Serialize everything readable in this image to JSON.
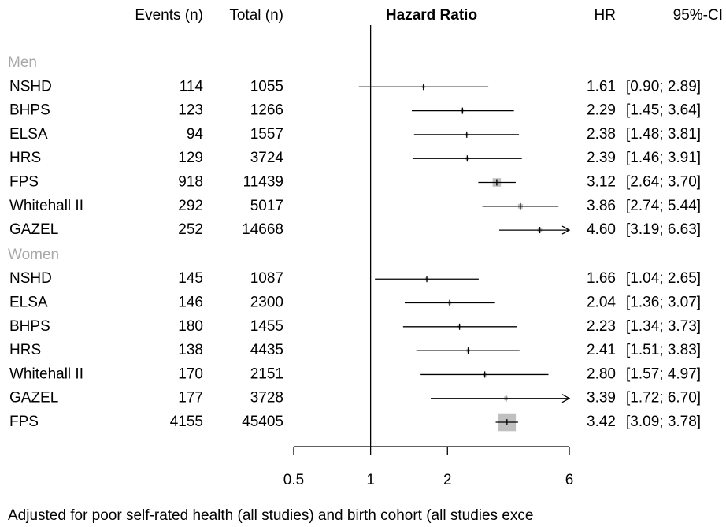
{
  "chart_data": {
    "type": "forest",
    "columns": {
      "events": "Events (n)",
      "total": "Total (n)",
      "plot": "Hazard Ratio",
      "hr": "HR",
      "ci": "95%-CI"
    },
    "xscale": "log",
    "xlim": [
      0.5,
      6
    ],
    "xticks": [
      0.5,
      1,
      2,
      6
    ],
    "reference": 1,
    "groups": [
      {
        "name": "Men",
        "rows": [
          {
            "study": "NSHD",
            "events": 114,
            "total": 1055,
            "hr": 1.61,
            "lower": 0.9,
            "upper": 2.89,
            "ci_label": "[0.90; 2.89]"
          },
          {
            "study": "BHPS",
            "events": 123,
            "total": 1266,
            "hr": 2.29,
            "lower": 1.45,
            "upper": 3.64,
            "ci_label": "[1.45; 3.64]"
          },
          {
            "study": "ELSA",
            "events": 94,
            "total": 1557,
            "hr": 2.38,
            "lower": 1.48,
            "upper": 3.81,
            "ci_label": "[1.48; 3.81]"
          },
          {
            "study": "HRS",
            "events": 129,
            "total": 3724,
            "hr": 2.39,
            "lower": 1.46,
            "upper": 3.91,
            "ci_label": "[1.46; 3.91]"
          },
          {
            "study": "FPS",
            "events": 918,
            "total": 11439,
            "hr": 3.12,
            "lower": 2.64,
            "upper": 3.7,
            "ci_label": "[2.64; 3.70]"
          },
          {
            "study": "Whitehall II",
            "events": 292,
            "total": 5017,
            "hr": 3.86,
            "lower": 2.74,
            "upper": 5.44,
            "ci_label": "[2.74; 5.44]"
          },
          {
            "study": "GAZEL",
            "events": 252,
            "total": 14668,
            "hr": 4.6,
            "hr_label": "4.60",
            "lower": 3.19,
            "upper": 6.63,
            "ci_label": "[3.19; 6.63]"
          }
        ]
      },
      {
        "name": "Women",
        "rows": [
          {
            "study": "NSHD",
            "events": 145,
            "total": 1087,
            "hr": 1.66,
            "lower": 1.04,
            "upper": 2.65,
            "ci_label": "[1.04; 2.65]"
          },
          {
            "study": "ELSA",
            "events": 146,
            "total": 2300,
            "hr": 2.04,
            "lower": 1.36,
            "upper": 3.07,
            "ci_label": "[1.36; 3.07]"
          },
          {
            "study": "BHPS",
            "events": 180,
            "total": 1455,
            "hr": 2.23,
            "lower": 1.34,
            "upper": 3.73,
            "ci_label": "[1.34; 3.73]"
          },
          {
            "study": "HRS",
            "events": 138,
            "total": 4435,
            "hr": 2.41,
            "lower": 1.51,
            "upper": 3.83,
            "ci_label": "[1.51; 3.83]"
          },
          {
            "study": "Whitehall II",
            "events": 170,
            "total": 2151,
            "hr": 2.8,
            "hr_label": "2.80",
            "lower": 1.57,
            "upper": 4.97,
            "ci_label": "[1.57; 4.97]"
          },
          {
            "study": "GAZEL",
            "events": 177,
            "total": 3728,
            "hr": 3.39,
            "lower": 1.72,
            "upper": 6.7,
            "ci_label": "[1.72; 6.70]"
          },
          {
            "study": "FPS",
            "events": 4155,
            "total": 45405,
            "hr": 3.42,
            "lower": 3.09,
            "upper": 3.78,
            "ci_label": "[3.09; 3.78]"
          }
        ]
      }
    ],
    "footnote": "Adjusted for poor self-rated health (all studies) and birth cohort (all studies exce"
  }
}
